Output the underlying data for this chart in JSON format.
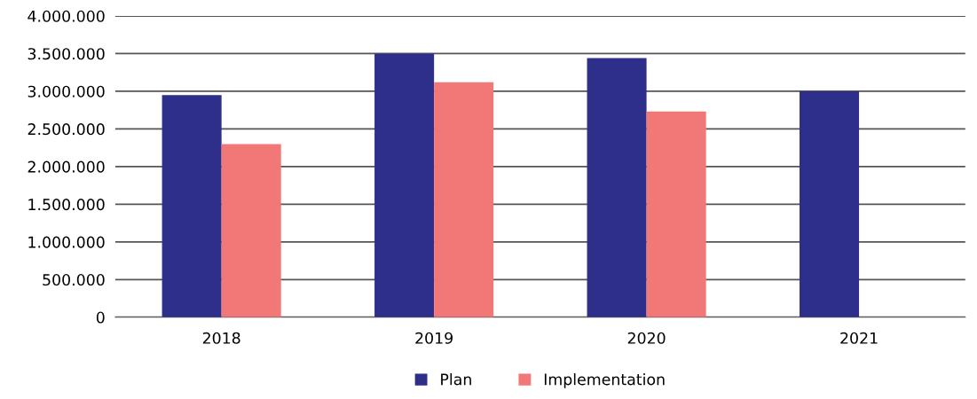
{
  "chart_data": {
    "type": "bar",
    "categories": [
      "2018",
      "2019",
      "2020",
      "2021"
    ],
    "series": [
      {
        "name": "Plan",
        "color": "#2e2f8a",
        "values": [
          2950000,
          3500000,
          3440000,
          3000000
        ]
      },
      {
        "name": "Implementation",
        "color": "#f27777",
        "values": [
          2300000,
          3120000,
          2730000,
          null
        ]
      }
    ],
    "ylim": [
      0,
      4000000
    ],
    "yticks": [
      {
        "value": 0,
        "label": "0"
      },
      {
        "value": 500000,
        "label": "500.000"
      },
      {
        "value": 1000000,
        "label": "1.000.000"
      },
      {
        "value": 1500000,
        "label": "1.500.000"
      },
      {
        "value": 2000000,
        "label": "2.000.000"
      },
      {
        "value": 2500000,
        "label": "2.500.000"
      },
      {
        "value": 3000000,
        "label": "3.000.000"
      },
      {
        "value": 3500000,
        "label": "3.500.000"
      },
      {
        "value": 4000000,
        "label": "4.000.000"
      }
    ],
    "grid": "y",
    "legend": "bottom"
  }
}
